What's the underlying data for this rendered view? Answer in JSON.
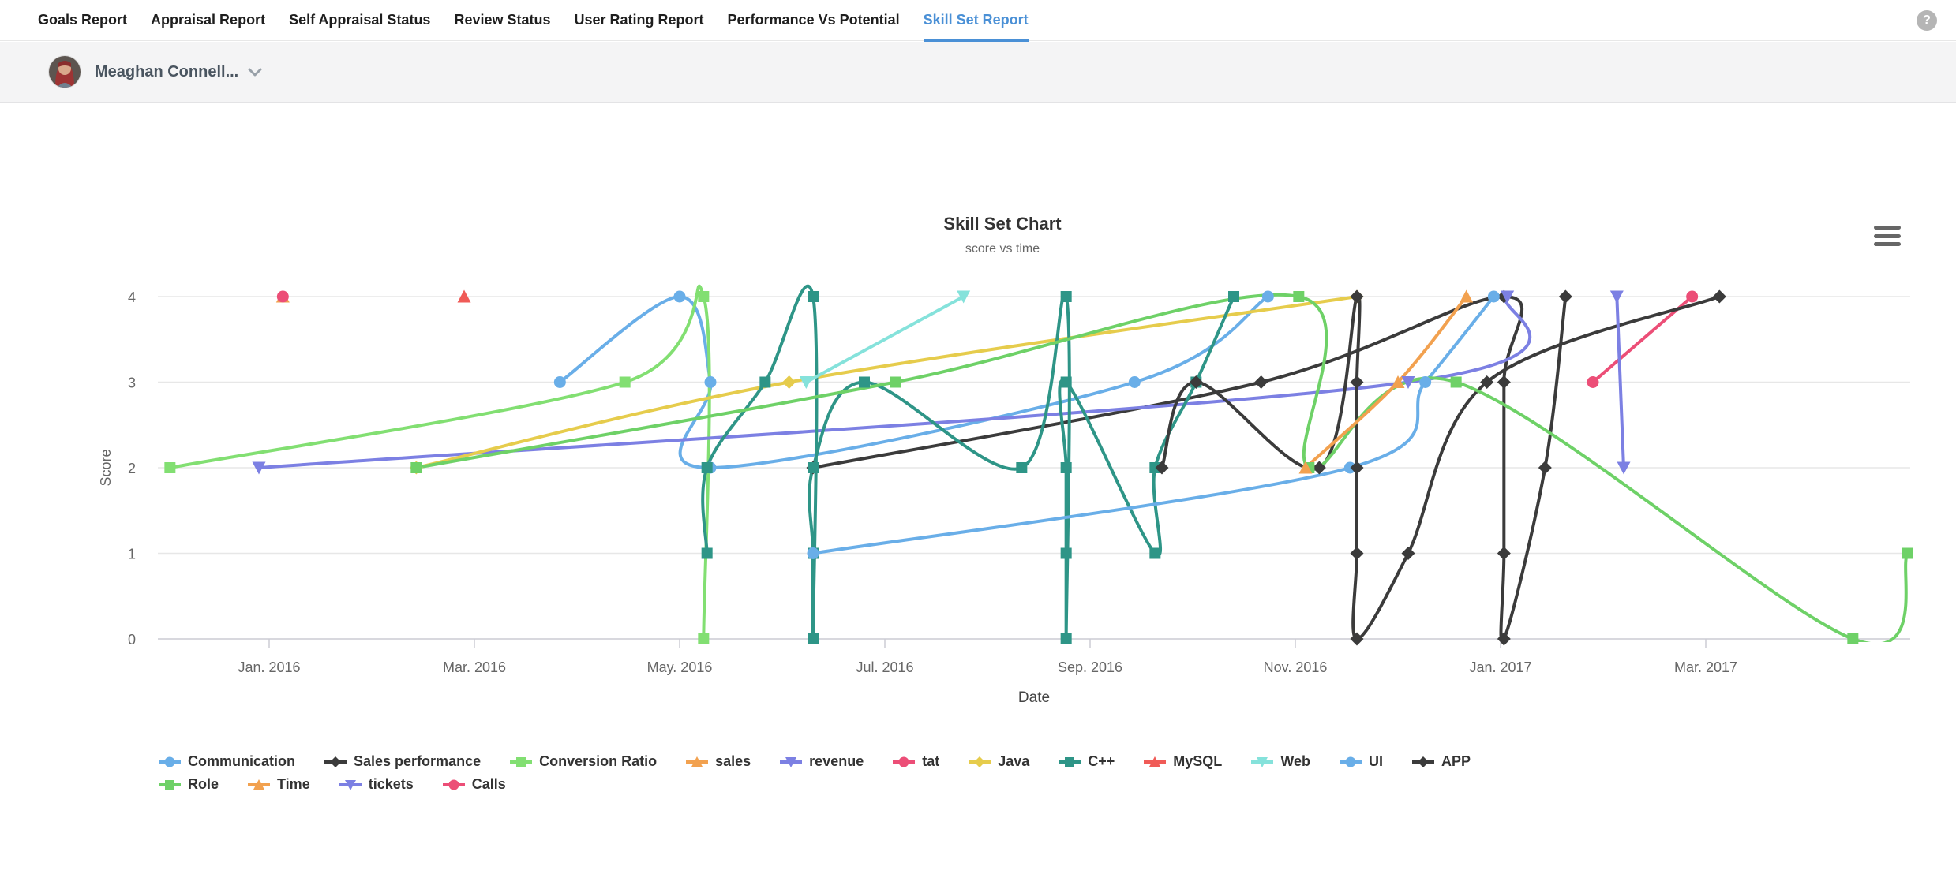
{
  "nav": {
    "tabs": [
      {
        "label": "Goals Report",
        "active": false
      },
      {
        "label": "Appraisal Report",
        "active": false
      },
      {
        "label": "Self Appraisal Status",
        "active": false
      },
      {
        "label": "Review Status",
        "active": false
      },
      {
        "label": "User Rating Report",
        "active": false
      },
      {
        "label": "Performance Vs Potential",
        "active": false
      },
      {
        "label": "Skill Set Report",
        "active": true
      }
    ],
    "help_label": "?"
  },
  "user_bar": {
    "name": "Meaghan Connell..."
  },
  "chart_data": {
    "type": "line",
    "title": "Skill Set Chart",
    "subtitle": "score vs time",
    "xlabel": "Date",
    "ylabel": "Score",
    "ylim": [
      0,
      4
    ],
    "grid": true,
    "legend_position": "bottom",
    "yaxis_ticks": [
      "0",
      "1",
      "2",
      "3",
      "4"
    ],
    "xaxis_ticks": [
      {
        "label": "Jan. 2016",
        "month": 0
      },
      {
        "label": "Mar. 2016",
        "month": 2
      },
      {
        "label": "May. 2016",
        "month": 4
      },
      {
        "label": "Jul. 2016",
        "month": 6
      },
      {
        "label": "Sep. 2016",
        "month": 8
      },
      {
        "label": "Nov. 2016",
        "month": 10
      },
      {
        "label": "Jan. 2017",
        "month": 12
      },
      {
        "label": "Mar. 2017",
        "month": 14
      }
    ],
    "series": [
      {
        "name": "Communication",
        "color": "#69aee8",
        "marker": "circle",
        "points": [
          [
            "2016-03-26",
            3
          ],
          [
            "2016-05-01",
            4
          ],
          [
            "2016-05-10",
            3
          ],
          [
            "2016-05-10",
            2
          ],
          [
            "2016-09-14",
            3
          ],
          [
            "2016-10-23",
            4
          ]
        ]
      },
      {
        "name": "Sales performance",
        "color": "#3b3b3b",
        "marker": "diamond",
        "points": [
          [
            "2016-06-10",
            2
          ],
          [
            "2016-10-21",
            3
          ],
          [
            "2017-01-02",
            4
          ],
          [
            "2017-01-02",
            3
          ],
          [
            "2017-01-02",
            1
          ],
          [
            "2017-01-02",
            0
          ],
          [
            "2017-01-14",
            2
          ],
          [
            "2017-01-20",
            4
          ]
        ]
      },
      {
        "name": "Conversion Ratio",
        "color": "#82df72",
        "marker": "square",
        "points": [
          [
            "2015-12-02",
            2
          ],
          [
            "2016-04-15",
            3
          ],
          [
            "2016-05-08",
            4
          ],
          [
            "2016-05-08",
            0
          ]
        ]
      },
      {
        "name": "sales",
        "color": "#f2a14f",
        "marker": "triangle",
        "points": [
          [
            "2016-01-05",
            4
          ]
        ]
      },
      {
        "name": "revenue",
        "color": "#7c80e3",
        "marker": "triangle-down",
        "points": [
          [
            "2015-12-28",
            2
          ],
          [
            "2016-12-04",
            3
          ],
          [
            "2017-01-03",
            4
          ]
        ]
      },
      {
        "name": "tat",
        "color": "#ec4e77",
        "marker": "circle",
        "points": [
          [
            "2017-01-28",
            3
          ],
          [
            "2017-02-27",
            4
          ]
        ]
      },
      {
        "name": "Java",
        "color": "#e6cc4c",
        "marker": "diamond",
        "points": [
          [
            "2016-02-14",
            2
          ],
          [
            "2016-06-03",
            3
          ],
          [
            "2016-11-19",
            4
          ]
        ]
      },
      {
        "name": "C++",
        "color": "#2e9587",
        "marker": "square",
        "points": [
          [
            "2016-05-09",
            1
          ],
          [
            "2016-05-09",
            2
          ],
          [
            "2016-05-26",
            3
          ],
          [
            "2016-06-10",
            4
          ],
          [
            "2016-06-10",
            0
          ],
          [
            "2016-06-10",
            1
          ],
          [
            "2016-06-10",
            2
          ],
          [
            "2016-06-25",
            3
          ],
          [
            "2016-08-11",
            2
          ],
          [
            "2016-08-24",
            4
          ],
          [
            "2016-08-24",
            0
          ],
          [
            "2016-08-24",
            1
          ],
          [
            "2016-08-24",
            2
          ],
          [
            "2016-08-24",
            3
          ],
          [
            "2016-09-20",
            1
          ],
          [
            "2016-09-20",
            2
          ],
          [
            "2016-10-02",
            3
          ],
          [
            "2016-10-13",
            4
          ]
        ]
      },
      {
        "name": "MySQL",
        "color": "#f05b57",
        "marker": "triangle",
        "points": [
          [
            "2016-02-28",
            4
          ]
        ]
      },
      {
        "name": "Web",
        "color": "#85e2db",
        "marker": "triangle-down",
        "points": [
          [
            "2016-06-08",
            3
          ],
          [
            "2016-07-24",
            4
          ]
        ]
      },
      {
        "name": "UI",
        "color": "#69aee8",
        "marker": "circle",
        "points": [
          [
            "2016-06-10",
            1
          ],
          [
            "2016-11-17",
            2
          ],
          [
            "2016-12-09",
            3
          ],
          [
            "2016-12-29",
            4
          ]
        ]
      },
      {
        "name": "APP",
        "color": "#3b3b3b",
        "marker": "diamond",
        "points": [
          [
            "2016-09-22",
            2
          ],
          [
            "2016-10-02",
            3
          ],
          [
            "2016-11-08",
            2
          ],
          [
            "2016-11-19",
            4
          ],
          [
            "2016-11-19",
            3
          ],
          [
            "2016-11-19",
            2
          ],
          [
            "2016-11-19",
            1
          ],
          [
            "2016-11-19",
            0
          ],
          [
            "2016-12-04",
            1
          ],
          [
            "2016-12-27",
            3
          ],
          [
            "2017-03-05",
            4
          ]
        ]
      },
      {
        "name": "Role",
        "color": "#6ed167",
        "marker": "square",
        "points": [
          [
            "2016-02-14",
            2
          ],
          [
            "2016-07-04",
            3
          ],
          [
            "2016-11-02",
            4
          ],
          [
            "2016-11-05",
            2
          ],
          [
            "2016-12-18",
            3
          ],
          [
            "2017-04-14",
            0
          ],
          [
            "2017-04-30",
            1
          ]
        ]
      },
      {
        "name": "Time",
        "color": "#f2a14f",
        "marker": "triangle",
        "points": [
          [
            "2016-11-04",
            2
          ],
          [
            "2016-12-01",
            3
          ],
          [
            "2016-12-21",
            4
          ]
        ]
      },
      {
        "name": "tickets",
        "color": "#7c80e3",
        "marker": "triangle-down",
        "points": [
          [
            "2017-02-05",
            4
          ],
          [
            "2017-02-07",
            2
          ]
        ]
      },
      {
        "name": "Calls",
        "color": "#ec4e77",
        "marker": "circle",
        "points": [
          [
            "2016-01-05",
            4
          ]
        ]
      }
    ],
    "legend_rows": [
      [
        "Communication",
        "Sales performance",
        "Conversion Ratio",
        "sales",
        "revenue",
        "tat",
        "Java",
        "C++",
        "MySQL",
        "Web",
        "UI",
        "APP"
      ],
      [
        "Role",
        "Time",
        "tickets",
        "Calls"
      ]
    ]
  }
}
